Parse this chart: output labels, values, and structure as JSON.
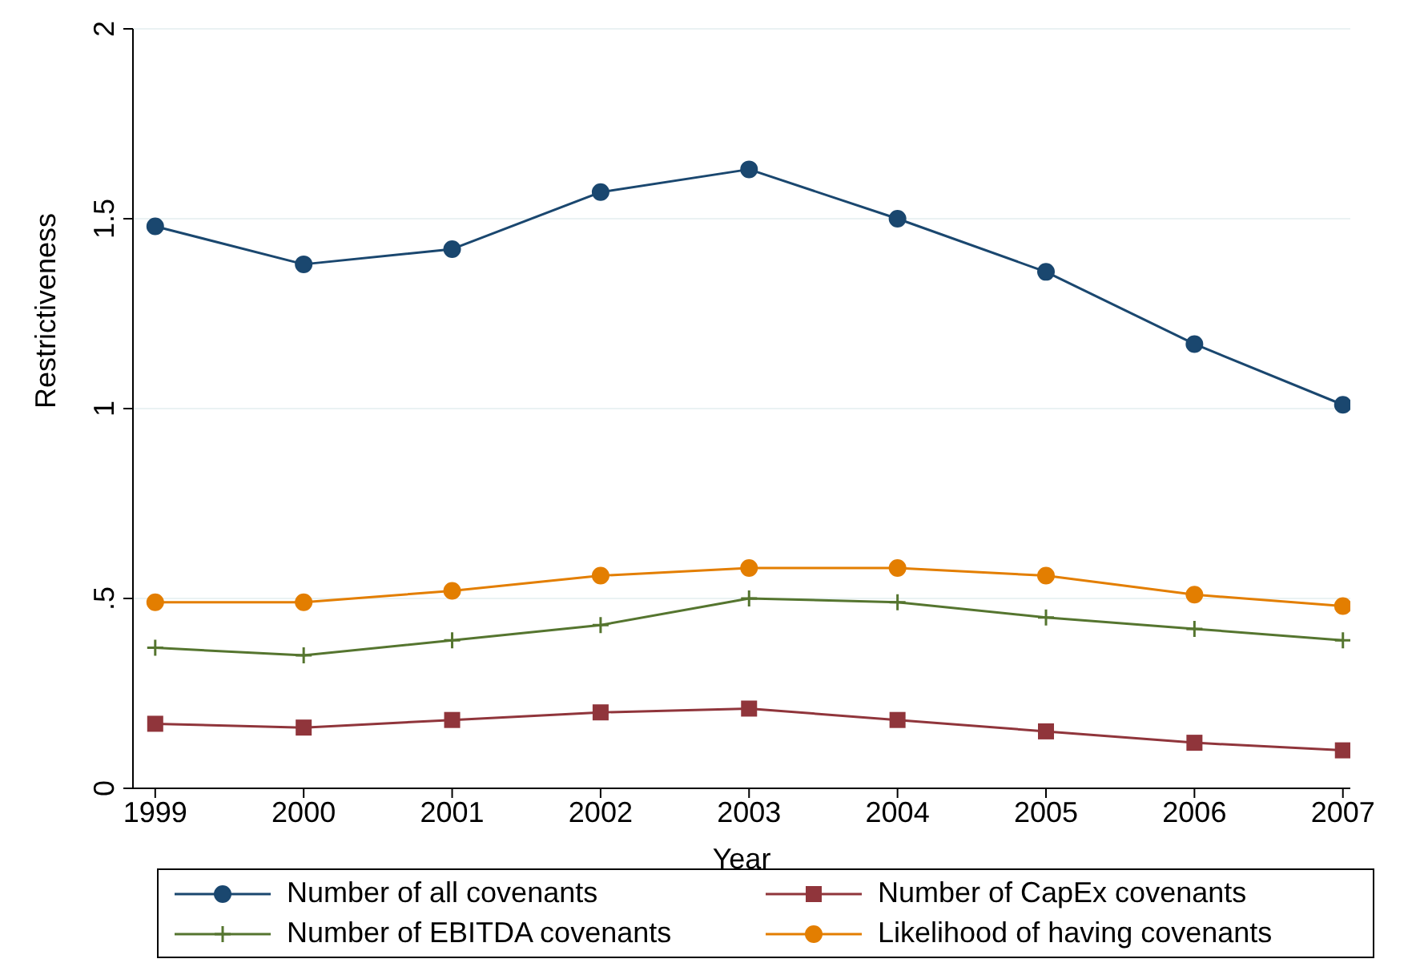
{
  "chart_data": {
    "type": "line",
    "xlabel": "Year",
    "ylabel": "Restrictiveness",
    "x": [
      1999,
      2000,
      2001,
      2002,
      2003,
      2004,
      2005,
      2006,
      2007
    ],
    "xlim": [
      1998.85,
      2007.05
    ],
    "xticks": [
      1999,
      2000,
      2001,
      2002,
      2003,
      2004,
      2005,
      2006,
      2007
    ],
    "ylim": [
      0,
      2
    ],
    "yticks": [
      0,
      {
        "value": 0.5,
        "label": ".5"
      },
      1,
      1.5,
      2
    ],
    "grid": "y",
    "legend": "bottom",
    "series": [
      {
        "name": "Number of all covenants",
        "color": "#1a476f",
        "marker": "circle",
        "values": [
          1.48,
          1.38,
          1.42,
          1.57,
          1.63,
          1.5,
          1.36,
          1.17,
          1.01
        ]
      },
      {
        "name": "Number of CapEx covenants",
        "color": "#90353b",
        "marker": "square",
        "values": [
          0.17,
          0.16,
          0.18,
          0.2,
          0.21,
          0.18,
          0.15,
          0.12,
          0.1
        ]
      },
      {
        "name": "Number of EBITDA covenants",
        "color": "#55752f",
        "marker": "cross",
        "values": [
          0.37,
          0.35,
          0.39,
          0.43,
          0.5,
          0.49,
          0.45,
          0.42,
          0.39
        ]
      },
      {
        "name": "Likelihood of having covenants",
        "color": "#e37e00",
        "marker": "circle",
        "values": [
          0.49,
          0.49,
          0.52,
          0.56,
          0.58,
          0.58,
          0.56,
          0.51,
          0.48
        ]
      }
    ]
  }
}
